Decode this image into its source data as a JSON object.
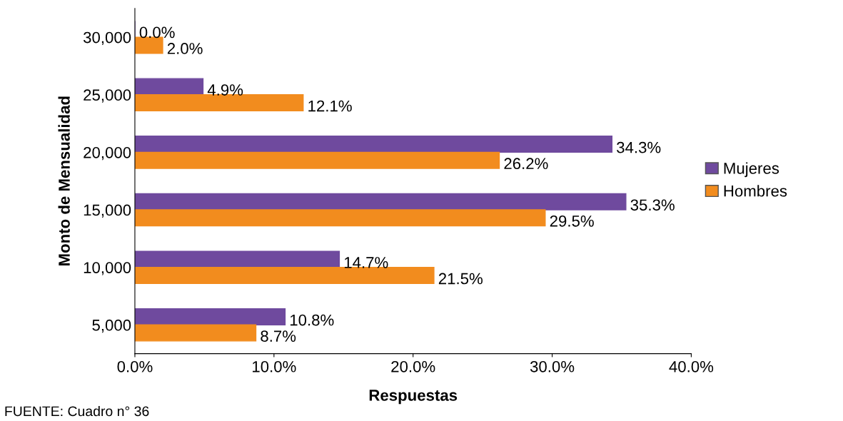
{
  "chart_data": {
    "type": "bar",
    "orientation": "horizontal",
    "xlabel": "Respuestas",
    "ylabel": "Monto de Mensualidad",
    "categories": [
      "30,000",
      "25,000",
      "20,000",
      "15,000",
      "10,000",
      "5,000"
    ],
    "series": [
      {
        "name": "Mujeres",
        "color": "#6f4a9e",
        "values": [
          0.0,
          4.9,
          34.3,
          35.3,
          14.7,
          10.8
        ],
        "value_labels": [
          "0.0%",
          "4.9%",
          "34.3%",
          "35.3%",
          "14.7%",
          "10.8%"
        ]
      },
      {
        "name": "Hombres",
        "color": "#f28c1e",
        "values": [
          2.0,
          12.1,
          26.2,
          29.5,
          21.5,
          8.7
        ],
        "value_labels": [
          "2.0%",
          "12.1%",
          "26.2%",
          "29.5%",
          "21.5%",
          "8.7%"
        ]
      }
    ],
    "xlim": [
      0,
      40
    ],
    "xticks": [
      {
        "value": 0,
        "label": "0.0%"
      },
      {
        "value": 10,
        "label": "10.0%"
      },
      {
        "value": 20,
        "label": "20.0%"
      },
      {
        "value": 30,
        "label": "30.0%"
      },
      {
        "value": 40,
        "label": "40.0%"
      }
    ],
    "grid": false,
    "legend": "right",
    "annotations": [
      "FUENTE: Cuadro n° 36"
    ]
  }
}
